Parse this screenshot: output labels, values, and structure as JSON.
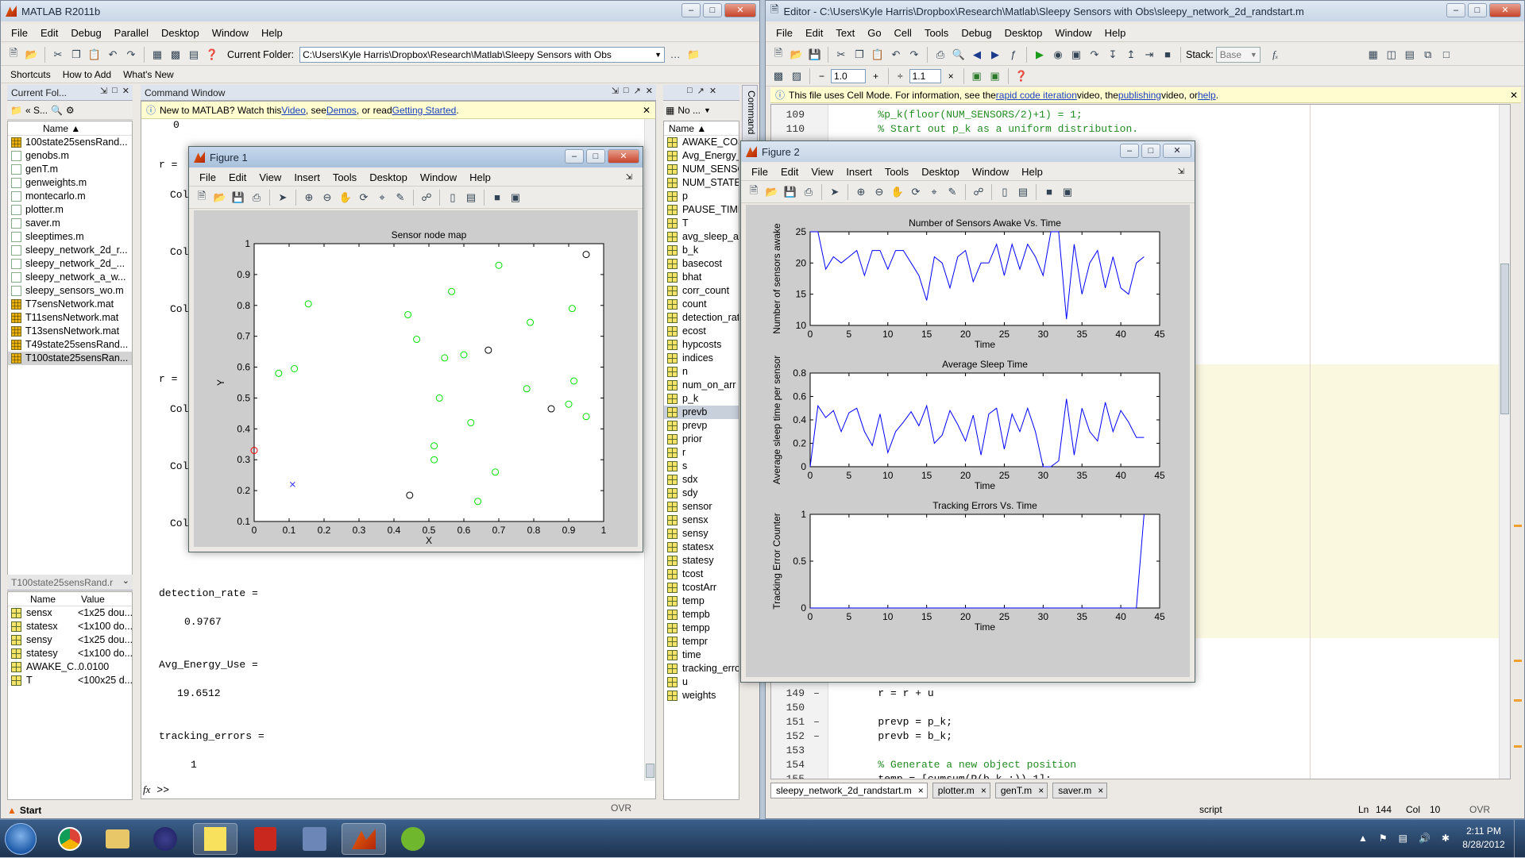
{
  "matlab": {
    "title": "MATLAB  R2011b",
    "menu": [
      "File",
      "Edit",
      "Debug",
      "Parallel",
      "Desktop",
      "Window",
      "Help"
    ],
    "current_folder_label": "Current Folder:",
    "current_folder_path": "C:\\Users\\Kyle Harris\\Dropbox\\Research\\Matlab\\Sleepy Sensors with Obs",
    "shortcuts": [
      "Shortcuts",
      "How to Add",
      "What's New"
    ],
    "folder_panel_title": "Current Fol...",
    "folder_nav": "«  S...",
    "folder_col": "Name",
    "files": [
      {
        "name": "100state25sensRand...",
        "type": "mat"
      },
      {
        "name": "genobs.m",
        "type": "m"
      },
      {
        "name": "genT.m",
        "type": "m"
      },
      {
        "name": "genweights.m",
        "type": "m"
      },
      {
        "name": "montecarlo.m",
        "type": "m"
      },
      {
        "name": "plotter.m",
        "type": "m"
      },
      {
        "name": "saver.m",
        "type": "m"
      },
      {
        "name": "sleeptimes.m",
        "type": "m"
      },
      {
        "name": "sleepy_network_2d_r...",
        "type": "m"
      },
      {
        "name": "sleepy_network_2d_...",
        "type": "m"
      },
      {
        "name": "sleepy_network_a_w...",
        "type": "m"
      },
      {
        "name": "sleepy_sensors_wo.m",
        "type": "m"
      },
      {
        "name": "T7sensNetwork.mat",
        "type": "mat"
      },
      {
        "name": "T11sensNetwork.mat",
        "type": "mat"
      },
      {
        "name": "T13sensNetwork.mat",
        "type": "mat"
      },
      {
        "name": "T49state25sensRand...",
        "type": "mat"
      },
      {
        "name": "T100state25sensRan...",
        "type": "mat"
      }
    ],
    "details_title": "T100state25sensRand.r",
    "details_cols": [
      "Name",
      "Value"
    ],
    "details_rows": [
      {
        "name": "sensx",
        "value": "<1x25 dou..."
      },
      {
        "name": "statesx",
        "value": "<1x100 do..."
      },
      {
        "name": "sensy",
        "value": "<1x25 dou..."
      },
      {
        "name": "statesy",
        "value": "<1x100 do..."
      },
      {
        "name": "AWAKE_C...",
        "value": "0.0100"
      },
      {
        "name": "T",
        "value": "<100x25 d..."
      }
    ],
    "command_window_title": "Command Window",
    "cw_info": {
      "pre": "New to MATLAB? Watch this ",
      "video": "Video",
      "mid1": ", see ",
      "demos": "Demos",
      "mid2": ", or read ",
      "gs": "Getting Started",
      "end": "."
    },
    "cw_lines_top": [
      "0",
      "r =",
      "Col",
      "Col",
      "Col",
      "r =",
      "Col",
      "Col",
      "Col"
    ],
    "cw_out": [
      {
        "var": "detection_rate =",
        "val": "0.9767"
      },
      {
        "var": "Avg_Energy_Use =",
        "val": "19.6512"
      },
      {
        "var": "tracking_errors =",
        "val": "1"
      }
    ],
    "prompt": ">>",
    "fx": "fx",
    "start": "Start",
    "ovr": "OVR",
    "workspace_nav": "No ...",
    "workspace_col": "Name",
    "workspace_vars": [
      "AWAKE_COST",
      "Avg_Energy_U",
      "NUM_SENSOR",
      "NUM_STATES",
      "p",
      "PAUSE_TIME",
      "T",
      "avg_sleep_arr",
      "b_k",
      "basecost",
      "bhat",
      "corr_count",
      "count",
      "detection_rate",
      "ecost",
      "hypcosts",
      "indices",
      "n",
      "num_on_arr",
      "p_k",
      "prevb",
      "prevp",
      "prior",
      "r",
      "s",
      "sdx",
      "sdy",
      "sensor",
      "sensx",
      "sensy",
      "statesx",
      "statesy",
      "tcost",
      "tcostArr",
      "temp",
      "tempb",
      "tempp",
      "tempr",
      "time",
      "tracking_errors",
      "u",
      "weights"
    ],
    "workspace_selected": "prevb",
    "command_history_tab": "Command"
  },
  "editor": {
    "title": "Editor - C:\\Users\\Kyle Harris\\Dropbox\\Research\\Matlab\\Sleepy Sensors with Obs\\sleepy_network_2d_randstart.m",
    "menu": [
      "File",
      "Edit",
      "Text",
      "Go",
      "Cell",
      "Tools",
      "Debug",
      "Desktop",
      "Window",
      "Help"
    ],
    "stack_label": "Stack:",
    "stack_value": "Base",
    "cell_minus": "−",
    "cell_val1": "1.0",
    "cell_plus": "+",
    "cell_div": "÷",
    "cell_val2": "1.1",
    "cell_times": "×",
    "info": {
      "pre": "This file uses Cell Mode. For information, see the ",
      "l1": "rapid code iteration",
      "m1": " video, the ",
      "l2": "publishing",
      "m2": " video, or ",
      "l3": "help",
      "end": "."
    },
    "code_top": [
      {
        "ln": "109",
        "dash": "",
        "text": "        %p_k(floor(NUM_SENSORS/2)+1) = 1;",
        "color": "#228b22"
      },
      {
        "ln": "110",
        "dash": "",
        "text": "        % Start out p_k as a uniform distribution.",
        "color": "#228b22"
      }
    ],
    "code_bottom": [
      {
        "ln": "149",
        "dash": "–",
        "text": "        r = r + u",
        "color": "#000"
      },
      {
        "ln": "150",
        "dash": "",
        "text": "",
        "color": "#000"
      },
      {
        "ln": "151",
        "dash": "–",
        "text": "        prevp = p_k;",
        "color": "#000"
      },
      {
        "ln": "152",
        "dash": "–",
        "text": "        prevb = b_k;",
        "color": "#000"
      },
      {
        "ln": "153",
        "dash": "",
        "text": "",
        "color": "#000"
      },
      {
        "ln": "154",
        "dash": "",
        "text": "        % Generate a new object position",
        "color": "#228b22"
      },
      {
        "ln": "155",
        "dash": "–",
        "text": "        temp = [cumsum(P(b_k,:)) 1];",
        "color": "#000"
      }
    ],
    "tabs": [
      "sleepy_network_2d_randstart.m",
      "plotter.m",
      "genT.m",
      "saver.m"
    ],
    "status": {
      "mode": "script",
      "ln_label": "Ln",
      "ln": "144",
      "col_label": "Col",
      "col": "10",
      "ovr": "OVR"
    }
  },
  "figure1": {
    "title": "Figure 1",
    "menu": [
      "File",
      "Edit",
      "View",
      "Insert",
      "Tools",
      "Desktop",
      "Window",
      "Help"
    ]
  },
  "figure2": {
    "title": "Figure 2",
    "menu": [
      "File",
      "Edit",
      "View",
      "Insert",
      "Tools",
      "Desktop",
      "Window",
      "Help"
    ]
  },
  "clock": {
    "time": "2:11 PM",
    "date": "8/28/2012"
  },
  "chart_data": [
    {
      "type": "scatter",
      "title": "Sensor node map",
      "xlabel": "X",
      "ylabel": "Y",
      "xlim": [
        0,
        1
      ],
      "ylim": [
        0.1,
        1
      ],
      "xticks": [
        "0",
        "0.1",
        "0.2",
        "0.3",
        "0.4",
        "0.5",
        "0.6",
        "0.7",
        "0.8",
        "0.9",
        "1"
      ],
      "yticks": [
        "0.1",
        "0.2",
        "0.3",
        "0.4",
        "0.5",
        "0.6",
        "0.7",
        "0.8",
        "0.9",
        "1"
      ],
      "series": [
        {
          "marker": "o",
          "color": "#00e000",
          "points": [
            [
              0.07,
              0.58
            ],
            [
              0.115,
              0.595
            ],
            [
              0.155,
              0.805
            ],
            [
              0.44,
              0.77
            ],
            [
              0.465,
              0.69
            ],
            [
              0.53,
              0.5
            ],
            [
              0.545,
              0.63
            ],
            [
              0.565,
              0.845
            ],
            [
              0.6,
              0.64
            ],
            [
              0.62,
              0.42
            ],
            [
              0.64,
              0.165
            ],
            [
              0.69,
              0.26
            ],
            [
              0.7,
              0.93
            ],
            [
              0.78,
              0.53
            ],
            [
              0.79,
              0.745
            ],
            [
              0.9,
              0.48
            ],
            [
              0.91,
              0.79
            ],
            [
              0.915,
              0.555
            ],
            [
              0.95,
              0.44
            ],
            [
              0.515,
              0.345
            ],
            [
              0.515,
              0.3
            ]
          ]
        },
        {
          "marker": "o",
          "color": "#000000",
          "points": [
            [
              0.95,
              0.965
            ],
            [
              0.67,
              0.655
            ],
            [
              0.85,
              0.465
            ],
            [
              0.445,
              0.185
            ]
          ]
        },
        {
          "marker": "x",
          "color": "#2222ff",
          "points": [
            [
              0.11,
              0.22
            ]
          ]
        },
        {
          "marker": "o",
          "color": "#ff0000",
          "points": [
            [
              0.0,
              0.33
            ]
          ]
        }
      ]
    },
    {
      "type": "line",
      "title": "Number of Sensors Awake Vs. Time",
      "xlabel": "Time",
      "ylabel": "Number of sensors awake",
      "xlim": [
        0,
        45
      ],
      "ylim": [
        10,
        25
      ],
      "xticks": [
        "0",
        "5",
        "10",
        "15",
        "20",
        "25",
        "30",
        "35",
        "40",
        "45"
      ],
      "yticks": [
        "10",
        "15",
        "20",
        "25"
      ],
      "series": [
        {
          "color": "#0000ff",
          "x": [
            0,
            1,
            2,
            3,
            4,
            5,
            6,
            7,
            8,
            9,
            10,
            11,
            12,
            13,
            14,
            15,
            16,
            17,
            18,
            19,
            20,
            21,
            22,
            23,
            24,
            25,
            26,
            27,
            28,
            29,
            30,
            31,
            32,
            33,
            34,
            35,
            36,
            37,
            38,
            39,
            40,
            41,
            42,
            43
          ],
          "values": [
            25,
            25,
            19,
            21,
            20,
            21,
            22,
            18,
            22,
            22,
            19,
            22,
            22,
            20,
            18,
            14,
            21,
            20,
            16,
            21,
            22,
            17,
            20,
            20,
            23,
            18,
            23,
            19,
            23,
            21,
            18,
            25,
            25,
            11,
            23,
            15,
            20,
            22,
            16,
            21,
            16,
            15,
            20,
            21
          ]
        }
      ]
    },
    {
      "type": "line",
      "title": "Average Sleep Time",
      "xlabel": "Time",
      "ylabel": "Average sleep time per sensor",
      "xlim": [
        0,
        45
      ],
      "ylim": [
        0,
        0.8
      ],
      "xticks": [
        "0",
        "5",
        "10",
        "15",
        "20",
        "25",
        "30",
        "35",
        "40",
        "45"
      ],
      "yticks": [
        "0",
        "0.2",
        "0.4",
        "0.6",
        "0.8"
      ],
      "series": [
        {
          "color": "#0000ff",
          "x": [
            0,
            1,
            2,
            3,
            4,
            5,
            6,
            7,
            8,
            9,
            10,
            11,
            12,
            13,
            14,
            15,
            16,
            17,
            18,
            19,
            20,
            21,
            22,
            23,
            24,
            25,
            26,
            27,
            28,
            29,
            30,
            31,
            32,
            33,
            34,
            35,
            36,
            37,
            38,
            39,
            40,
            41,
            42,
            43
          ],
          "values": [
            0,
            0.52,
            0.42,
            0.48,
            0.3,
            0.46,
            0.5,
            0.3,
            0.18,
            0.45,
            0.12,
            0.3,
            0.38,
            0.47,
            0.35,
            0.52,
            0.2,
            0.27,
            0.48,
            0.36,
            0.22,
            0.44,
            0.1,
            0.45,
            0.5,
            0.15,
            0.45,
            0.3,
            0.5,
            0.3,
            0.0,
            0.0,
            0.05,
            0.58,
            0.1,
            0.5,
            0.3,
            0.22,
            0.55,
            0.3,
            0.48,
            0.38,
            0.25,
            0.25
          ]
        }
      ]
    },
    {
      "type": "line",
      "title": "Tracking Errors Vs. Time",
      "xlabel": "Time",
      "ylabel": "Tracking Error Counter",
      "xlim": [
        0,
        45
      ],
      "ylim": [
        0,
        1
      ],
      "xticks": [
        "0",
        "5",
        "10",
        "15",
        "20",
        "25",
        "30",
        "35",
        "40",
        "45"
      ],
      "yticks": [
        "0",
        "0.5",
        "1"
      ],
      "series": [
        {
          "color": "#0000ff",
          "x": [
            0,
            10,
            20,
            30,
            40,
            42,
            43
          ],
          "values": [
            0,
            0,
            0,
            0,
            0,
            0,
            1
          ]
        }
      ]
    }
  ]
}
